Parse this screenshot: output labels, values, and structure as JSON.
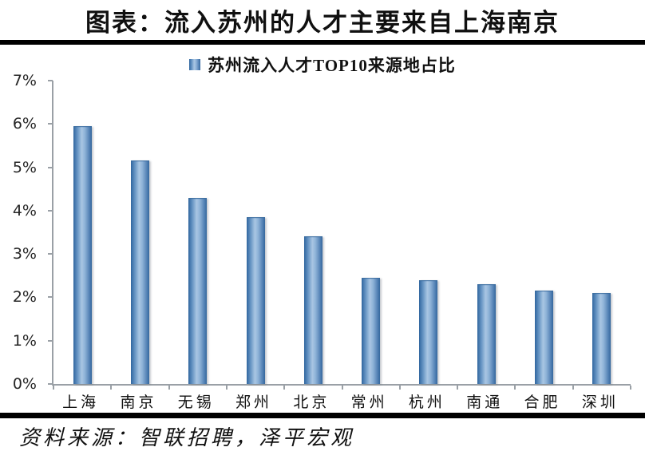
{
  "header": {
    "title": "图表：流入苏州的人才主要来自上海南京"
  },
  "legend": {
    "label": "苏州流入人才TOP10来源地占比"
  },
  "footer": {
    "source": "资料来源：智联招聘，泽平宏观"
  },
  "chart_data": {
    "type": "bar",
    "title": "苏州流入人才TOP10来源地占比",
    "categories": [
      "上海",
      "南京",
      "无锡",
      "郑州",
      "北京",
      "常州",
      "杭州",
      "南通",
      "合肥",
      "深圳"
    ],
    "values": [
      5.95,
      5.15,
      4.3,
      3.85,
      3.4,
      2.45,
      2.4,
      2.3,
      2.15,
      2.1
    ],
    "unit": "%",
    "xlabel": "",
    "ylabel": "",
    "ylim": [
      0,
      7
    ],
    "y_ticks": [
      "0%",
      "1%",
      "2%",
      "3%",
      "4%",
      "5%",
      "6%",
      "7%"
    ],
    "grid": false,
    "legend_position": "top-center",
    "bar_color_dark": "#30669f",
    "bar_color_light": "#a9c6e3",
    "axis_color": "#9aa0a6"
  }
}
